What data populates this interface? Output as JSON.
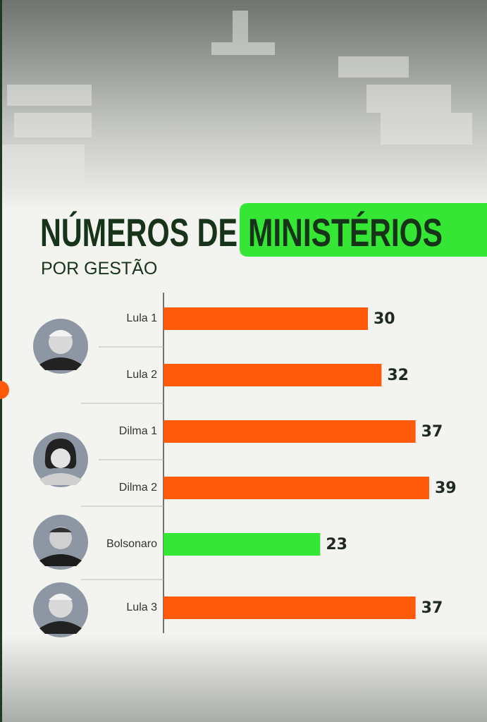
{
  "chart_data": {
    "type": "bar",
    "orientation": "horizontal",
    "title": "NÚMEROS DE",
    "title_highlight": "MINISTÉRIOS",
    "subtitle": "POR GESTÃO",
    "categories": [
      "Lula 1",
      "Lula 2",
      "Dilma 1",
      "Dilma 2",
      "Bolsonaro",
      "Lula 3"
    ],
    "values": [
      30,
      32,
      37,
      39,
      23,
      37
    ],
    "colors": [
      "#ff5a0a",
      "#ff5a0a",
      "#ff5a0a",
      "#ff5a0a",
      "#36e636",
      "#ff5a0a"
    ]
  }
}
